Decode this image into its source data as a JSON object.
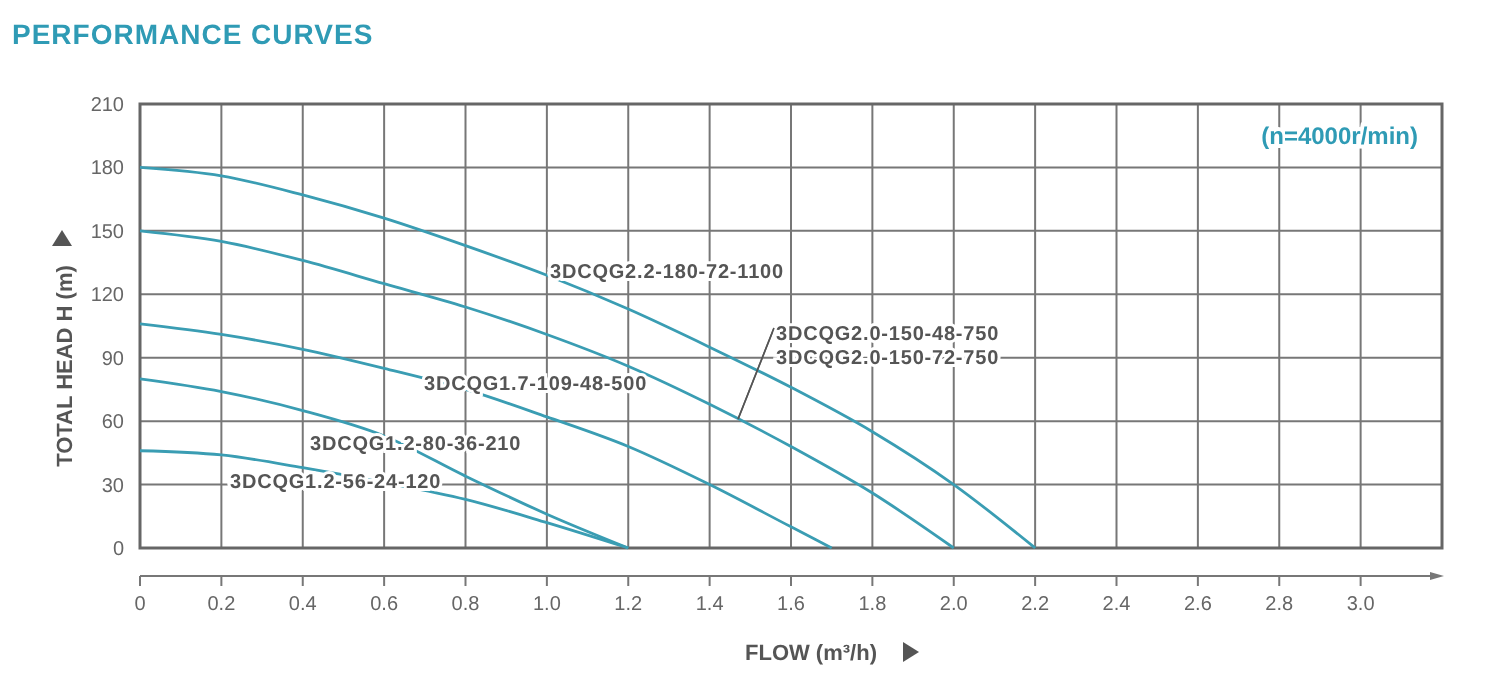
{
  "chart_data": {
    "type": "line",
    "title": "PERFORMANCE CURVES",
    "xlabel": "FLOW (m³/h)",
    "ylabel": "TOTAL HEAD H (m)",
    "xlim": [
      0,
      3.2
    ],
    "ylim": [
      0,
      210
    ],
    "xticks": [
      0,
      0.2,
      0.4,
      0.6,
      0.8,
      {
        "value": 1,
        "label": "1.0"
      },
      1.2,
      1.4,
      1.6,
      1.8,
      {
        "value": 2,
        "label": "2.0"
      },
      2.2,
      2.4,
      2.6,
      2.8,
      {
        "value": 3,
        "label": "3.0"
      }
    ],
    "yticks": [
      0,
      30,
      60,
      90,
      120,
      150,
      180,
      210
    ],
    "grid": true,
    "annotations": [
      "(n=4000r/min)",
      {
        "text": "3DCQG2.0-150-48-750",
        "x": 1.47,
        "y": 61
      },
      {
        "text": "3DCQG2.0-150-72-750",
        "x": 1.47,
        "y": 61
      }
    ],
    "series": [
      {
        "name": "3DCQG2.2-180-72-1100",
        "color": "#3a9db3",
        "x": [
          0,
          0.2,
          0.4,
          0.6,
          0.8,
          1.0,
          1.2,
          1.4,
          1.6,
          1.8,
          2.0,
          2.2
        ],
        "values": [
          180,
          176,
          167,
          156,
          143,
          129,
          113,
          95,
          76,
          55,
          30,
          0
        ]
      },
      {
        "color": "#3a9db3",
        "x": [
          0,
          0.2,
          0.4,
          0.6,
          0.8,
          1.0,
          1.2,
          1.4,
          1.6,
          1.8,
          2.0
        ],
        "values": [
          150,
          145,
          136,
          125,
          114,
          101,
          86,
          68,
          48,
          26,
          0
        ]
      },
      {
        "name": "3DCQG1.7-109-48-500",
        "color": "#3a9db3",
        "x": [
          0,
          0.2,
          0.4,
          0.6,
          0.8,
          1.0,
          1.2,
          1.4,
          1.6,
          1.7
        ],
        "values": [
          106,
          101,
          94,
          85,
          75,
          62,
          48,
          30,
          10,
          0
        ]
      },
      {
        "name": "3DCQG1.2-80-36-210",
        "color": "#3a9db3",
        "x": [
          0,
          0.2,
          0.4,
          0.6,
          0.8,
          1.0,
          1.2
        ],
        "values": [
          80,
          74,
          65,
          53,
          34,
          16,
          0
        ]
      },
      {
        "name": "3DCQG1.2-56-24-120",
        "color": "#3a9db3",
        "x": [
          0,
          0.2,
          0.4,
          0.6,
          0.8,
          1.0,
          1.2
        ],
        "values": [
          46,
          44,
          38,
          31,
          23,
          12,
          0
        ]
      }
    ]
  }
}
